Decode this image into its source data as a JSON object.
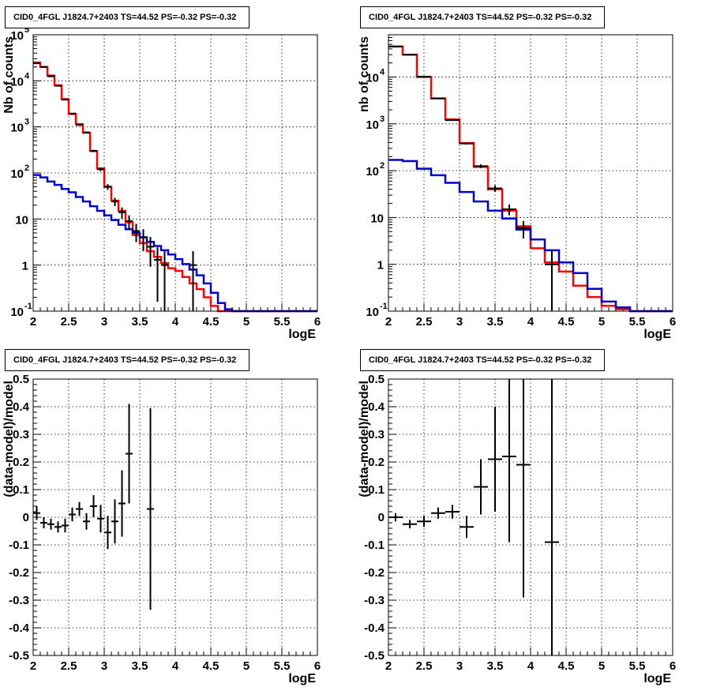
{
  "panel_title": "CID0_4FGL J1824.7+2403 TS=44.52 PS=-0.32 PS=-0.32",
  "colors": {
    "data": "#000000",
    "model_total": "#ff0000",
    "model_component": "#0000cc",
    "grid": "#000000"
  },
  "chart_data": [
    {
      "type": "histogram",
      "title": "CID0_4FGL J1824.7+2403 TS=44.52 PS=-0.32 PS=-0.32",
      "xlabel": "logE",
      "ylabel": "Nb of counts",
      "xlim": [
        2,
        6
      ],
      "ylim": [
        0.1,
        100000
      ],
      "yscale": "log",
      "grid": true,
      "xticks": [
        "2",
        "2.5",
        "3",
        "3.5",
        "4",
        "4.5",
        "5",
        "5.5",
        "6"
      ],
      "yticks": [
        "10^-1",
        "1",
        "10",
        "10^2",
        "10^3",
        "10^4",
        "10^5"
      ],
      "bin_edges": [
        2.0,
        2.1,
        2.2,
        2.3,
        2.4,
        2.5,
        2.6,
        2.7,
        2.8,
        2.9,
        3.0,
        3.1,
        3.2,
        3.3,
        3.4,
        3.5,
        3.6,
        3.7,
        3.8,
        3.9,
        4.0,
        4.1,
        4.2,
        4.3,
        4.4,
        4.5,
        4.6,
        4.7,
        4.8,
        4.9,
        5.0,
        5.1,
        5.2,
        5.3,
        5.4,
        5.5,
        5.6,
        5.7,
        5.8,
        5.9,
        6.0
      ],
      "series": [
        {
          "role": "model_total",
          "values": [
            25000,
            20000,
            13000,
            8000,
            4000,
            1900,
            1150,
            750,
            300,
            125,
            50,
            25,
            15,
            8.5,
            4.5,
            3.0,
            2.0,
            1.5,
            1.1,
            0.85,
            0.75,
            0.55,
            0.4,
            0.3,
            0.2,
            0.13,
            0.1,
            0.1,
            0.1,
            0.1,
            0.1,
            0.1,
            0.1,
            0.1,
            0.1,
            0.1,
            0.1,
            0.1,
            0.1,
            0.1
          ]
        },
        {
          "role": "model_component",
          "values": [
            90,
            80,
            65,
            55,
            45,
            38,
            30,
            24,
            19,
            15,
            12,
            9.5,
            7.5,
            6.0,
            5.0,
            4.0,
            3.2,
            2.6,
            2.1,
            1.7,
            1.35,
            1.05,
            0.8,
            0.6,
            0.4,
            0.25,
            0.15,
            0.11,
            0.1,
            0.1,
            0.1,
            0.1,
            0.1,
            0.1,
            0.1,
            0.1,
            0.1,
            0.1,
            0.1,
            0.1
          ]
        },
        {
          "role": "data",
          "points": [
            {
              "x": 2.05,
              "y": 24000
            },
            {
              "x": 2.15,
              "y": 20000
            },
            {
              "x": 2.25,
              "y": 12500
            },
            {
              "x": 2.35,
              "y": 7800
            },
            {
              "x": 2.45,
              "y": 3900
            },
            {
              "x": 2.55,
              "y": 1950
            },
            {
              "x": 2.65,
              "y": 1100
            },
            {
              "x": 2.75,
              "y": 760
            },
            {
              "x": 2.85,
              "y": 300
            },
            {
              "x": 2.95,
              "y": 120
            },
            {
              "x": 3.05,
              "y": 50
            },
            {
              "x": 3.15,
              "y": 24
            },
            {
              "x": 3.25,
              "y": 14
            },
            {
              "x": 3.35,
              "y": 9
            },
            {
              "x": 3.45,
              "y": 5.5
            },
            {
              "x": 3.55,
              "y": 4.0
            },
            {
              "x": 3.65,
              "y": 2.5
            },
            {
              "x": 3.75,
              "y": 1.3
            },
            {
              "x": 3.85,
              "y": 1.0
            },
            {
              "x": 4.25,
              "y": 1.0
            }
          ]
        }
      ]
    },
    {
      "type": "histogram",
      "title": "CID0_4FGL J1824.7+2403 TS=44.52 PS=-0.32 PS=-0.32",
      "xlabel": "logE",
      "ylabel": "nb of counts",
      "xlim": [
        2,
        6
      ],
      "ylim": [
        0.1,
        80000
      ],
      "yscale": "log",
      "grid": true,
      "xticks": [
        "2",
        "2.5",
        "3",
        "3.5",
        "4",
        "4.5",
        "5",
        "5.5",
        "6"
      ],
      "yticks": [
        "10^-1",
        "1",
        "10",
        "10^2",
        "10^3",
        "10^4"
      ],
      "bin_edges": [
        2.0,
        2.2,
        2.4,
        2.6,
        2.8,
        3.0,
        3.2,
        3.4,
        3.6,
        3.8,
        4.0,
        4.2,
        4.4,
        4.6,
        4.8,
        5.0,
        5.2,
        5.4,
        5.6,
        5.8,
        6.0
      ],
      "series": [
        {
          "role": "model_total",
          "values": [
            45000,
            30000,
            10000,
            3500,
            1250,
            390,
            120,
            40,
            14,
            6.5,
            2.2,
            1.1,
            0.7,
            0.35,
            0.2,
            0.13,
            0.11,
            0.1,
            0.1,
            0.1
          ]
        },
        {
          "role": "model_component",
          "values": [
            170,
            160,
            110,
            80,
            55,
            35,
            22,
            14,
            9.5,
            5.5,
            3.4,
            2.0,
            1.1,
            0.65,
            0.3,
            0.16,
            0.12,
            0.1,
            0.1,
            0.1
          ]
        },
        {
          "role": "data",
          "points": [
            {
              "x": 2.1,
              "y": 45000
            },
            {
              "x": 2.3,
              "y": 30000
            },
            {
              "x": 2.5,
              "y": 10200
            },
            {
              "x": 2.7,
              "y": 3500
            },
            {
              "x": 2.9,
              "y": 1200
            },
            {
              "x": 3.1,
              "y": 380
            },
            {
              "x": 3.3,
              "y": 125
            },
            {
              "x": 3.5,
              "y": 42
            },
            {
              "x": 3.7,
              "y": 15
            },
            {
              "x": 3.9,
              "y": 6
            },
            {
              "x": 4.3,
              "y": 1
            }
          ]
        }
      ]
    },
    {
      "type": "scatter",
      "title": "CID0_4FGL J1824.7+2403 TS=44.52 PS=-0.32 PS=-0.32",
      "xlabel": "logE",
      "ylabel": "(data-model)/model",
      "xlim": [
        2,
        6
      ],
      "ylim": [
        -0.5,
        0.5
      ],
      "grid": true,
      "xticks": [
        "2",
        "2.5",
        "3",
        "3.5",
        "4",
        "4.5",
        "5",
        "5.5",
        "6"
      ],
      "yticks": [
        "-0.5",
        "-0.4",
        "-0.3",
        "-0.2",
        "-0.1",
        "0",
        "0.1",
        "0.2",
        "0.3",
        "0.4",
        "0.5"
      ],
      "series": [
        {
          "role": "data",
          "bin_width": 0.1,
          "points": [
            {
              "x": 2.05,
              "y": 0.015,
              "err": 0.025
            },
            {
              "x": 2.15,
              "y": -0.02,
              "err": 0.02
            },
            {
              "x": 2.25,
              "y": -0.025,
              "err": 0.02
            },
            {
              "x": 2.35,
              "y": -0.035,
              "err": 0.02
            },
            {
              "x": 2.45,
              "y": -0.03,
              "err": 0.025
            },
            {
              "x": 2.55,
              "y": 0.01,
              "err": 0.025
            },
            {
              "x": 2.65,
              "y": 0.03,
              "err": 0.025
            },
            {
              "x": 2.75,
              "y": -0.015,
              "err": 0.03
            },
            {
              "x": 2.85,
              "y": 0.04,
              "err": 0.04
            },
            {
              "x": 2.95,
              "y": -0.005,
              "err": 0.05
            },
            {
              "x": 3.05,
              "y": -0.055,
              "err": 0.06
            },
            {
              "x": 3.15,
              "y": -0.015,
              "err": 0.08
            },
            {
              "x": 3.25,
              "y": 0.05,
              "err": 0.12
            },
            {
              "x": 3.35,
              "y": 0.23,
              "err": 0.18
            },
            {
              "x": 3.65,
              "y": 0.03,
              "err": 0.365
            }
          ]
        }
      ]
    },
    {
      "type": "scatter",
      "title": "CID0_4FGL J1824.7+2403 TS=44.52 PS=-0.32 PS=-0.32",
      "xlabel": "logE",
      "ylabel": "(data-model)/model",
      "xlim": [
        2,
        6
      ],
      "ylim": [
        -0.5,
        0.5
      ],
      "grid": true,
      "xticks": [
        "2",
        "2.5",
        "3",
        "3.5",
        "4",
        "4.5",
        "5",
        "5.5",
        "6"
      ],
      "yticks": [
        "-0.5",
        "-0.4",
        "-0.3",
        "-0.2",
        "-0.1",
        "0",
        "0.1",
        "0.2",
        "0.3",
        "0.4",
        "0.5"
      ],
      "series": [
        {
          "role": "data",
          "bin_width": 0.2,
          "points": [
            {
              "x": 2.1,
              "y": 0.0,
              "err": 0.015
            },
            {
              "x": 2.3,
              "y": -0.025,
              "err": 0.015
            },
            {
              "x": 2.5,
              "y": -0.015,
              "err": 0.02
            },
            {
              "x": 2.7,
              "y": 0.015,
              "err": 0.02
            },
            {
              "x": 2.9,
              "y": 0.02,
              "err": 0.025
            },
            {
              "x": 3.1,
              "y": -0.035,
              "err": 0.04
            },
            {
              "x": 3.3,
              "y": 0.11,
              "err": 0.1
            },
            {
              "x": 3.5,
              "y": 0.21,
              "err": 0.19
            },
            {
              "x": 3.7,
              "y": 0.22,
              "err": 0.31
            },
            {
              "x": 3.9,
              "y": 0.19,
              "err": 0.48
            },
            {
              "x": 4.3,
              "y": -0.09,
              "err": 0.6
            }
          ]
        }
      ]
    }
  ]
}
